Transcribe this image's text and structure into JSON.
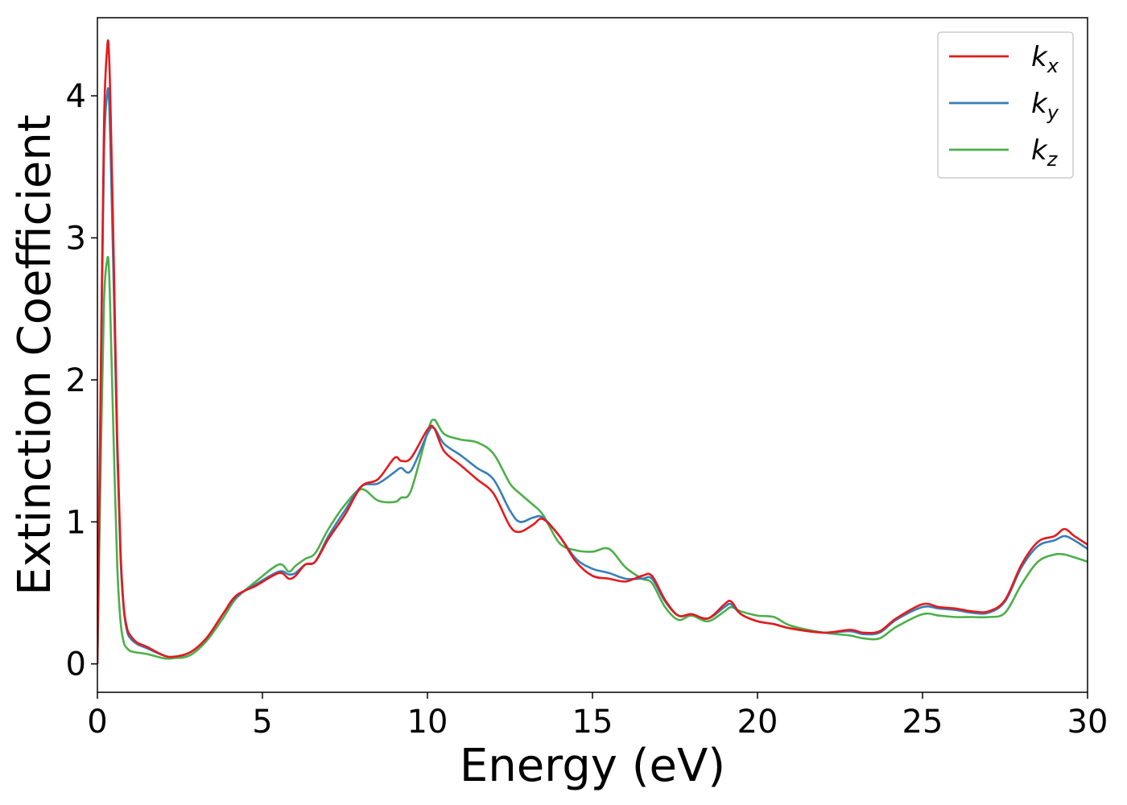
{
  "chart_data": {
    "type": "line",
    "title": "",
    "xlabel": "Energy (eV)",
    "ylabel": "Extinction Coefficient",
    "xlim": [
      0,
      30
    ],
    "ylim": [
      -0.2,
      4.55
    ],
    "xticks": [
      0,
      5,
      10,
      15,
      20,
      25,
      30
    ],
    "xtick_labels": [
      "0",
      "5",
      "10",
      "15",
      "20",
      "25",
      "30"
    ],
    "yticks": [
      0,
      1,
      2,
      3,
      4
    ],
    "ytick_labels": [
      "0",
      "1",
      "2",
      "3",
      "4"
    ],
    "grid": false,
    "legend_position": "top-right",
    "series": [
      {
        "name": "k_x",
        "legend_base": "k",
        "legend_sub": "x",
        "color": "#e41a1c",
        "x": [
          0,
          0.1,
          0.2,
          0.3,
          0.35,
          0.4,
          0.5,
          0.6,
          0.7,
          0.8,
          0.9,
          1.0,
          1.2,
          1.5,
          2.0,
          2.3,
          2.8,
          3.3,
          3.8,
          4.2,
          4.8,
          5.5,
          5.8,
          6.0,
          6.3,
          6.6,
          7.0,
          7.5,
          8.0,
          8.5,
          9.0,
          9.2,
          9.5,
          10.0,
          10.2,
          10.5,
          11.0,
          11.5,
          12.0,
          12.5,
          12.8,
          13.2,
          13.5,
          14.0,
          14.5,
          15.0,
          15.5,
          16.0,
          16.5,
          16.8,
          17.2,
          17.6,
          18.0,
          18.5,
          19.0,
          19.2,
          19.5,
          20.0,
          20.5,
          21.0,
          22.0,
          22.8,
          23.2,
          23.7,
          24.2,
          25.0,
          25.5,
          26.0,
          26.5,
          27.0,
          27.5,
          28.0,
          28.5,
          29.0,
          29.3,
          29.6,
          30.0
        ],
        "y": [
          0,
          2.0,
          3.8,
          4.35,
          4.3,
          3.9,
          2.8,
          1.6,
          0.8,
          0.4,
          0.25,
          0.2,
          0.15,
          0.12,
          0.06,
          0.05,
          0.08,
          0.18,
          0.35,
          0.48,
          0.55,
          0.64,
          0.6,
          0.62,
          0.7,
          0.72,
          0.88,
          1.05,
          1.25,
          1.3,
          1.45,
          1.43,
          1.45,
          1.65,
          1.66,
          1.5,
          1.4,
          1.3,
          1.2,
          0.97,
          0.93,
          0.98,
          1.02,
          0.9,
          0.72,
          0.62,
          0.6,
          0.58,
          0.62,
          0.62,
          0.45,
          0.34,
          0.35,
          0.32,
          0.42,
          0.44,
          0.35,
          0.3,
          0.28,
          0.25,
          0.22,
          0.24,
          0.22,
          0.23,
          0.32,
          0.42,
          0.4,
          0.39,
          0.37,
          0.37,
          0.45,
          0.7,
          0.86,
          0.9,
          0.95,
          0.9,
          0.84
        ]
      },
      {
        "name": "k_y",
        "legend_base": "k",
        "legend_sub": "y",
        "color": "#377eb8",
        "x": [
          0,
          0.1,
          0.2,
          0.3,
          0.35,
          0.4,
          0.5,
          0.6,
          0.7,
          0.8,
          0.9,
          1.0,
          1.2,
          1.5,
          2.0,
          2.3,
          2.8,
          3.3,
          3.8,
          4.2,
          4.8,
          5.5,
          5.8,
          6.0,
          6.3,
          6.6,
          7.0,
          7.5,
          8.0,
          8.5,
          9.0,
          9.2,
          9.5,
          10.0,
          10.2,
          10.5,
          11.0,
          11.5,
          12.0,
          12.5,
          12.8,
          13.2,
          13.5,
          14.0,
          14.5,
          15.0,
          15.5,
          16.0,
          16.5,
          16.8,
          17.2,
          17.6,
          18.0,
          18.5,
          19.0,
          19.2,
          19.5,
          20.0,
          20.5,
          21.0,
          22.0,
          22.8,
          23.2,
          23.7,
          24.2,
          25.0,
          25.5,
          26.0,
          26.5,
          27.0,
          27.5,
          28.0,
          28.5,
          29.0,
          29.3,
          29.6,
          30.0
        ],
        "y": [
          0,
          1.9,
          3.6,
          4.02,
          3.98,
          3.6,
          2.6,
          1.5,
          0.75,
          0.38,
          0.23,
          0.18,
          0.14,
          0.11,
          0.06,
          0.05,
          0.08,
          0.18,
          0.35,
          0.47,
          0.56,
          0.65,
          0.63,
          0.64,
          0.7,
          0.72,
          0.9,
          1.08,
          1.25,
          1.27,
          1.35,
          1.38,
          1.36,
          1.62,
          1.66,
          1.55,
          1.47,
          1.38,
          1.3,
          1.08,
          1.0,
          1.03,
          1.03,
          0.9,
          0.74,
          0.67,
          0.64,
          0.6,
          0.6,
          0.6,
          0.44,
          0.34,
          0.35,
          0.32,
          0.4,
          0.42,
          0.35,
          0.3,
          0.28,
          0.25,
          0.22,
          0.23,
          0.21,
          0.22,
          0.31,
          0.4,
          0.39,
          0.38,
          0.36,
          0.36,
          0.44,
          0.68,
          0.83,
          0.87,
          0.9,
          0.87,
          0.81
        ]
      },
      {
        "name": "k_z",
        "legend_base": "k",
        "legend_sub": "z",
        "color": "#4daf4a",
        "x": [
          0,
          0.1,
          0.2,
          0.3,
          0.35,
          0.4,
          0.5,
          0.6,
          0.7,
          0.8,
          0.9,
          1.0,
          1.2,
          1.5,
          2.0,
          2.3,
          2.8,
          3.3,
          3.8,
          4.2,
          4.8,
          5.5,
          5.8,
          6.0,
          6.3,
          6.6,
          7.0,
          7.5,
          8.0,
          8.5,
          9.0,
          9.2,
          9.5,
          10.0,
          10.2,
          10.5,
          11.0,
          11.5,
          12.0,
          12.5,
          12.8,
          13.2,
          13.5,
          14.0,
          14.5,
          15.0,
          15.5,
          16.0,
          16.5,
          16.8,
          17.2,
          17.6,
          18.0,
          18.5,
          19.0,
          19.2,
          19.5,
          20.0,
          20.5,
          21.0,
          22.0,
          22.8,
          23.2,
          23.7,
          24.2,
          25.0,
          25.5,
          26.0,
          26.5,
          27.0,
          27.5,
          28.0,
          28.5,
          29.0,
          29.3,
          29.6,
          30.0
        ],
        "y": [
          0,
          1.4,
          2.55,
          2.85,
          2.78,
          2.4,
          1.5,
          0.7,
          0.3,
          0.15,
          0.11,
          0.09,
          0.08,
          0.07,
          0.04,
          0.04,
          0.06,
          0.16,
          0.32,
          0.46,
          0.58,
          0.7,
          0.65,
          0.69,
          0.74,
          0.78,
          0.95,
          1.12,
          1.23,
          1.15,
          1.14,
          1.17,
          1.22,
          1.63,
          1.72,
          1.62,
          1.58,
          1.56,
          1.48,
          1.27,
          1.2,
          1.12,
          1.05,
          0.85,
          0.8,
          0.79,
          0.81,
          0.68,
          0.6,
          0.57,
          0.4,
          0.31,
          0.34,
          0.3,
          0.37,
          0.4,
          0.37,
          0.34,
          0.33,
          0.27,
          0.22,
          0.2,
          0.18,
          0.18,
          0.26,
          0.35,
          0.34,
          0.33,
          0.33,
          0.33,
          0.36,
          0.56,
          0.72,
          0.77,
          0.77,
          0.75,
          0.72
        ]
      }
    ]
  }
}
